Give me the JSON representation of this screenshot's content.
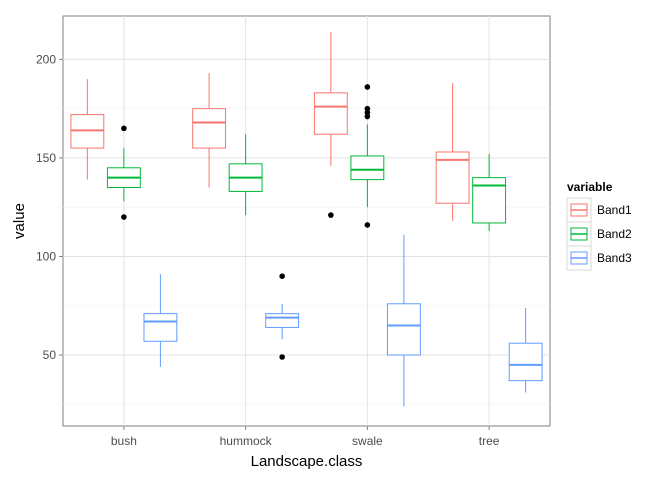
{
  "chart_data": {
    "type": "boxplot",
    "xlabel": "Landscape.class",
    "ylabel": "value",
    "categories": [
      "bush",
      "hummock",
      "swale",
      "tree"
    ],
    "ylim": [
      14,
      222
    ],
    "yticks": [
      50,
      100,
      150,
      200
    ],
    "grid": true,
    "legend": {
      "title": "variable",
      "position": "right",
      "entries": [
        "Band1",
        "Band2",
        "Band3"
      ]
    },
    "series": [
      {
        "name": "Band1",
        "color": "#F8766D",
        "boxes": [
          {
            "category": "bush",
            "min": 139,
            "q1": 155,
            "median": 164,
            "q3": 172,
            "max": 190,
            "outliers": []
          },
          {
            "category": "hummock",
            "min": 135,
            "q1": 155,
            "median": 168,
            "q3": 175,
            "max": 193,
            "outliers": []
          },
          {
            "category": "swale",
            "min": 146,
            "q1": 162,
            "median": 176,
            "q3": 183,
            "max": 214,
            "outliers": [
              121
            ]
          },
          {
            "category": "tree",
            "min": 118,
            "q1": 127,
            "median": 149,
            "q3": 153,
            "max": 188,
            "outliers": []
          }
        ]
      },
      {
        "name": "Band2",
        "color": "#00BA38",
        "boxes": [
          {
            "category": "bush",
            "min": 128,
            "q1": 135,
            "median": 140,
            "q3": 145,
            "max": 155,
            "outliers": [
              165,
              120
            ]
          },
          {
            "category": "hummock",
            "min": 121,
            "q1": 133,
            "median": 140,
            "q3": 147,
            "max": 162,
            "outliers": []
          },
          {
            "category": "swale",
            "min": 125,
            "q1": 139,
            "median": 144,
            "q3": 151,
            "max": 167,
            "outliers": [
              186,
              175,
              173,
              171,
              116
            ]
          },
          {
            "category": "tree",
            "min": 113,
            "q1": 117,
            "median": 136,
            "q3": 140,
            "max": 152,
            "outliers": []
          }
        ]
      },
      {
        "name": "Band3",
        "color": "#619CFF",
        "boxes": [
          {
            "category": "bush",
            "min": 44,
            "q1": 57,
            "median": 67,
            "q3": 71,
            "max": 91,
            "outliers": []
          },
          {
            "category": "hummock",
            "min": 58,
            "q1": 64,
            "median": 69,
            "q3": 71,
            "max": 76,
            "outliers": [
              90,
              49
            ]
          },
          {
            "category": "swale",
            "min": 24,
            "q1": 50,
            "median": 65,
            "q3": 76,
            "max": 111,
            "outliers": []
          },
          {
            "category": "tree",
            "min": 31,
            "q1": 37,
            "median": 45,
            "q3": 56,
            "max": 74,
            "outliers": []
          }
        ]
      }
    ]
  }
}
